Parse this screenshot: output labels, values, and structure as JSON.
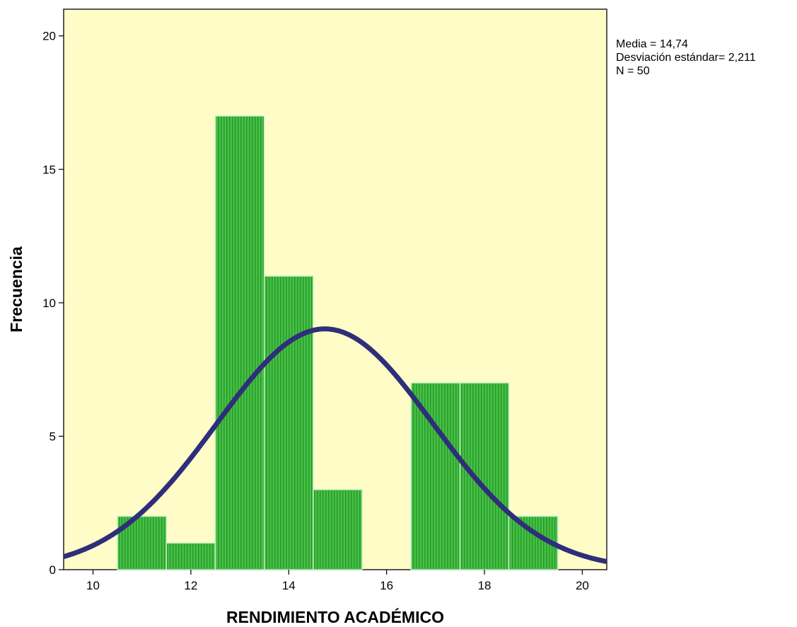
{
  "chart_data": {
    "type": "bar",
    "subtype": "histogram-with-normal-curve",
    "xlabel": "RENDIMIENTO ACADÉMICO",
    "ylabel": "Frecuencia",
    "xlim": [
      9.4,
      20.5
    ],
    "ylim": [
      0,
      21
    ],
    "x_ticks": [
      10,
      12,
      14,
      16,
      18,
      20
    ],
    "y_ticks": [
      0,
      5,
      10,
      15,
      20
    ],
    "bins": [
      {
        "start": 10.5,
        "end": 11.5,
        "count": 2
      },
      {
        "start": 11.5,
        "end": 12.5,
        "count": 1
      },
      {
        "start": 12.5,
        "end": 13.5,
        "count": 17
      },
      {
        "start": 13.5,
        "end": 14.5,
        "count": 11
      },
      {
        "start": 14.5,
        "end": 15.5,
        "count": 3
      },
      {
        "start": 15.5,
        "end": 16.5,
        "count": 0
      },
      {
        "start": 16.5,
        "end": 17.5,
        "count": 7
      },
      {
        "start": 17.5,
        "end": 18.5,
        "count": 7
      },
      {
        "start": 18.5,
        "end": 19.5,
        "count": 2
      }
    ],
    "normal_curve": {
      "mean": 14.74,
      "std": 2.211,
      "n": 50,
      "bin_width": 1
    },
    "stats_lines": [
      "Media = 14,74",
      "Desviación estándar= 2,211",
      "N = 50"
    ],
    "colors": {
      "plot_background": "#fffcc8",
      "bar_fill": "#46c046",
      "bar_stripe": "#2a9a2a",
      "bar_edge": "#c8f0c8",
      "curve": "#2e2e7a",
      "axis": "#000000"
    }
  }
}
